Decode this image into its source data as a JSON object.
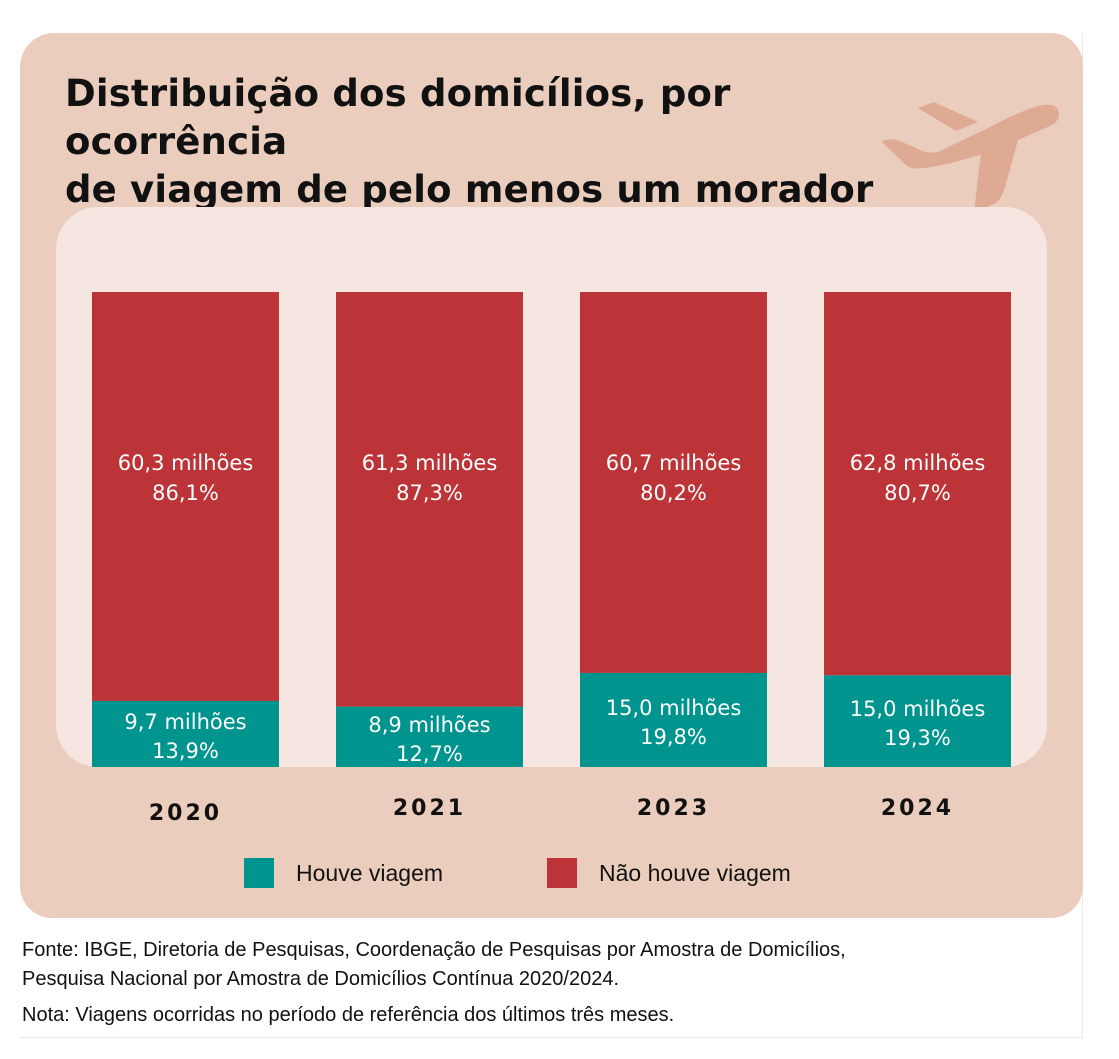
{
  "title": {
    "line1": "Distribuição dos domicílios, por ocorrência",
    "line2": "de viagem de pelo menos um morador"
  },
  "decoration": {
    "icon": "airplane-icon",
    "color": "#DEAA93"
  },
  "colors": {
    "background_card": "#EBCDBE",
    "panel": "#F5E6E1",
    "houve_viagem": "#00948E",
    "nao_houve_viagem": "#BC3437"
  },
  "legend": [
    {
      "label": "Houve viagem",
      "color": "#00948E"
    },
    {
      "label": "Não houve viagem",
      "color": "#BC3437"
    }
  ],
  "chart_data": {
    "type": "bar",
    "stacked": true,
    "normalized": true,
    "title": "Distribuição dos domicílios, por ocorrência de viagem de pelo menos um morador",
    "xlabel": "",
    "ylabel": "",
    "ylim": [
      0,
      100
    ],
    "grid": false,
    "legend_position": "bottom",
    "categories": [
      "2020",
      "2021",
      "2023",
      "2024"
    ],
    "series": [
      {
        "name": "Houve viagem",
        "color": "#00948E",
        "values": [
          13.9,
          12.7,
          19.8,
          19.3
        ],
        "absolute_millions": [
          9.7,
          8.9,
          15.0,
          15.0
        ],
        "labels_count": [
          "9,7 milhões",
          "8,9 milhões",
          "15,0 milhões",
          "15,0 milhões"
        ],
        "labels_pct": [
          "13,9%",
          "12,7%",
          "19,8%",
          "19,3%"
        ]
      },
      {
        "name": "Não houve viagem",
        "color": "#BC3437",
        "values": [
          86.1,
          87.3,
          80.2,
          80.7
        ],
        "absolute_millions": [
          60.3,
          61.3,
          60.7,
          62.8
        ],
        "labels_count": [
          "60,3 milhões",
          "61,3 milhões",
          "60,7 milhões",
          "62,8 milhões"
        ],
        "labels_pct": [
          "86,1%",
          "87,3%",
          "80,2%",
          "80,7%"
        ]
      }
    ]
  },
  "notes": {
    "fonte_line1": "Fonte: IBGE, Diretoria de Pesquisas, Coordenação de Pesquisas por Amostra de Domicílios,",
    "fonte_line2": "Pesquisa Nacional por Amostra de Domicílios Contínua 2020/2024.",
    "nota": "Nota: Viagens ocorridas no período de referência dos últimos três meses."
  }
}
